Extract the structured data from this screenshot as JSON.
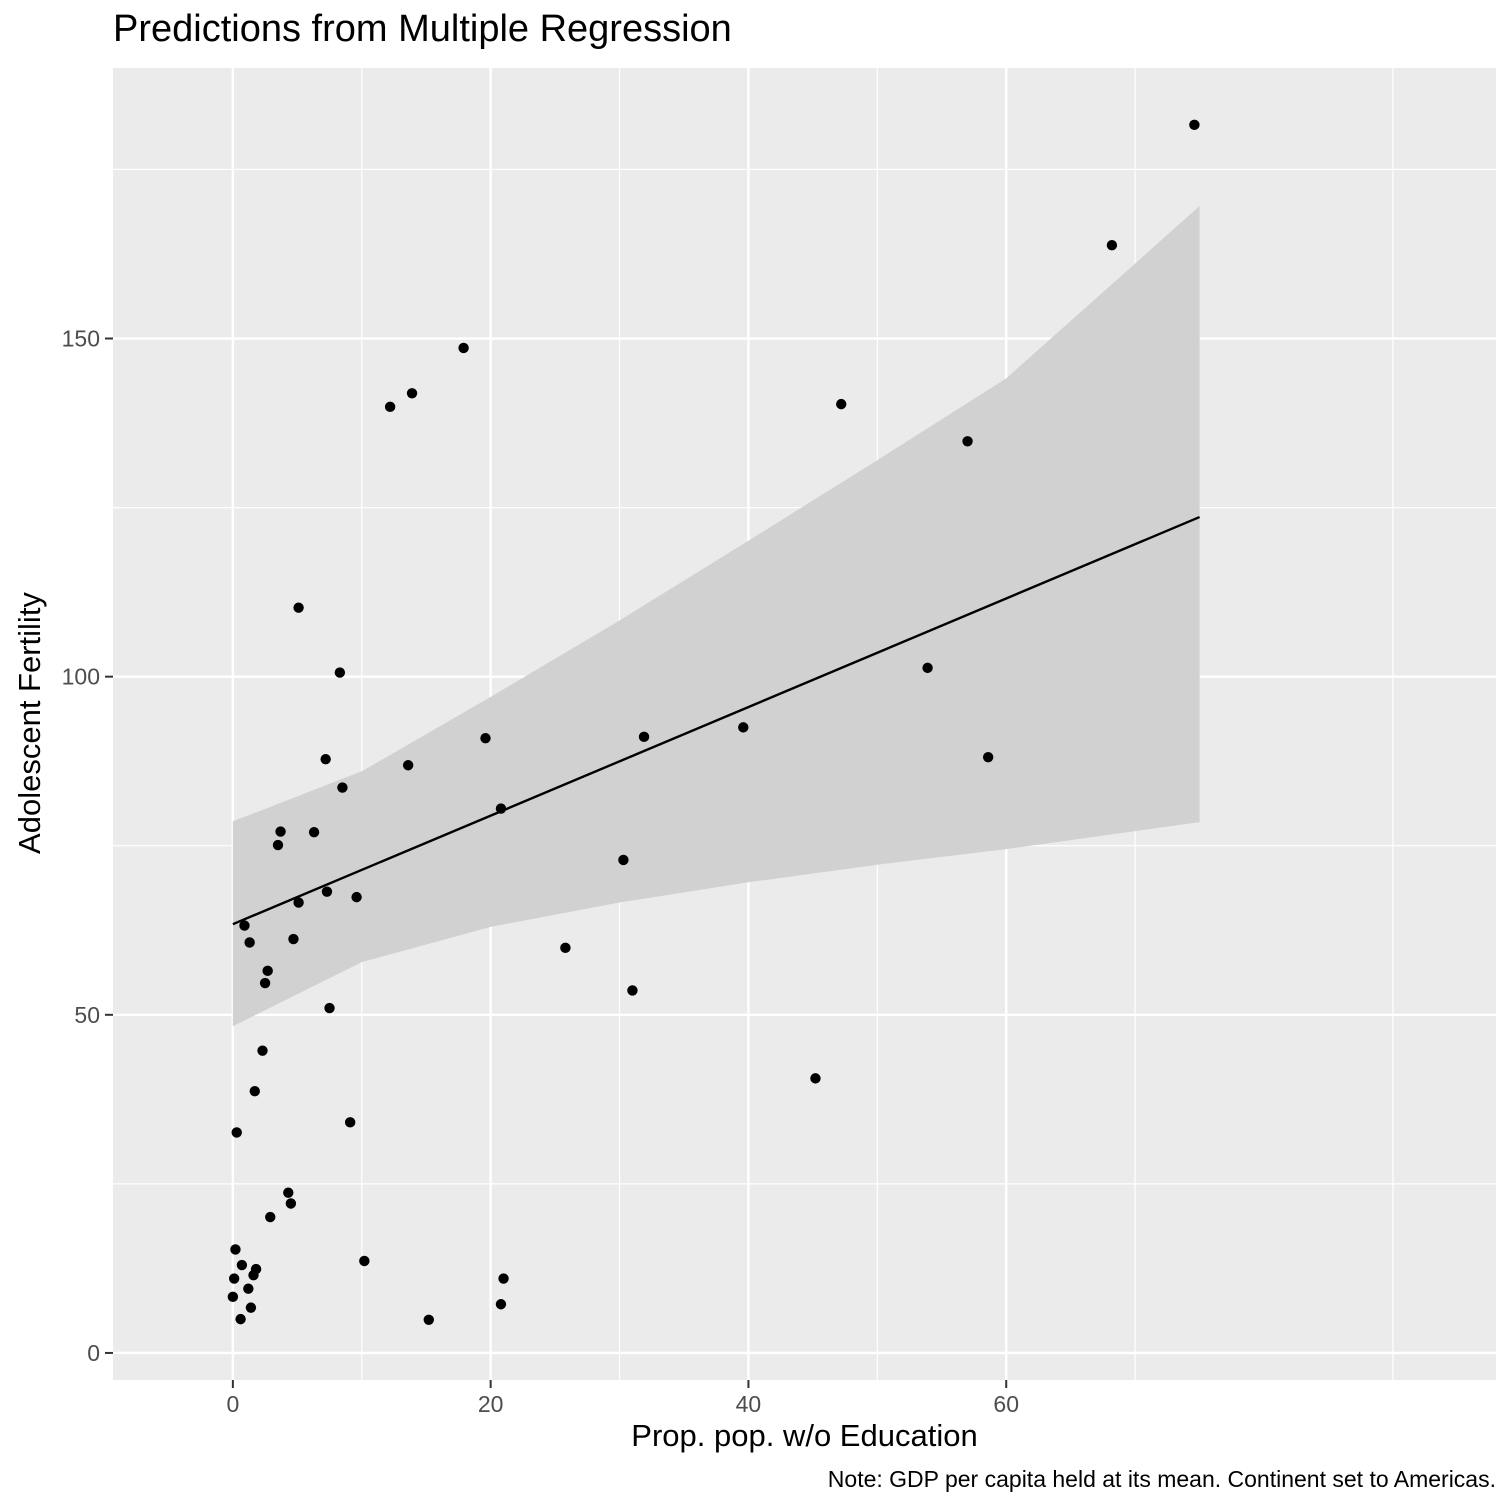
{
  "chart_data": {
    "type": "scatter",
    "title": "Predictions from Multiple Regression",
    "xlabel": "Prop. pop. w/o Education",
    "ylabel": "Adolescent Fertility",
    "caption": "Note: GDP per capita held at its mean. Continent set to Americas.",
    "xlim": [
      -9.3,
      98
    ],
    "ylim": [
      -4,
      190
    ],
    "x_ticks": [
      0,
      20,
      40,
      60
    ],
    "y_ticks": [
      0,
      50,
      100,
      150
    ],
    "grid": true,
    "background": "#ebebeb",
    "colors": {
      "points": "#000000",
      "line": "#000000",
      "ribbon": "#d1d1d1",
      "grid_major": "#ffffff"
    },
    "points": [
      [
        0.0,
        8.3
      ],
      [
        0.1,
        11.0
      ],
      [
        0.2,
        15.3
      ],
      [
        0.3,
        32.6
      ],
      [
        0.6,
        5.0
      ],
      [
        0.7,
        13.0
      ],
      [
        0.9,
        63.2
      ],
      [
        1.2,
        9.5
      ],
      [
        1.3,
        60.7
      ],
      [
        1.4,
        6.7
      ],
      [
        1.6,
        11.5
      ],
      [
        1.7,
        38.7
      ],
      [
        1.8,
        12.4
      ],
      [
        2.3,
        44.7
      ],
      [
        2.5,
        54.7
      ],
      [
        2.7,
        56.5
      ],
      [
        2.9,
        20.1
      ],
      [
        3.5,
        75.1
      ],
      [
        3.7,
        77.1
      ],
      [
        4.3,
        23.7
      ],
      [
        4.5,
        22.1
      ],
      [
        4.7,
        61.2
      ],
      [
        5.1,
        66.6
      ],
      [
        5.1,
        110.2
      ],
      [
        6.3,
        77.0
      ],
      [
        7.2,
        87.8
      ],
      [
        7.3,
        68.2
      ],
      [
        7.5,
        51.0
      ],
      [
        8.3,
        100.6
      ],
      [
        8.5,
        83.6
      ],
      [
        9.1,
        34.1
      ],
      [
        9.6,
        67.4
      ],
      [
        10.2,
        13.6
      ],
      [
        12.2,
        139.9
      ],
      [
        13.6,
        86.9
      ],
      [
        13.9,
        141.9
      ],
      [
        15.2,
        4.9
      ],
      [
        17.9,
        148.6
      ],
      [
        19.6,
        90.9
      ],
      [
        20.8,
        7.2
      ],
      [
        20.8,
        80.5
      ],
      [
        21.0,
        11.0
      ],
      [
        25.8,
        59.9
      ],
      [
        30.3,
        72.9
      ],
      [
        31.0,
        53.6
      ],
      [
        31.9,
        91.1
      ],
      [
        39.6,
        92.5
      ],
      [
        45.2,
        40.6
      ],
      [
        47.2,
        140.3
      ],
      [
        53.9,
        101.3
      ],
      [
        57.0,
        134.8
      ],
      [
        58.6,
        88.1
      ],
      [
        68.2,
        163.8
      ],
      [
        74.6,
        181.6
      ]
    ],
    "fit_line": {
      "x": [
        0,
        75
      ],
      "y": [
        63.4,
        123.6
      ]
    },
    "confidence_band": {
      "x": [
        0,
        10,
        20,
        30,
        40,
        50,
        60,
        75
      ],
      "lower": [
        48.3,
        57.8,
        63.0,
        66.6,
        69.6,
        72.2,
        74.5,
        78.5
      ],
      "upper": [
        78.6,
        86.0,
        97.0,
        108.3,
        120.1,
        132.0,
        144.1,
        169.6
      ]
    }
  }
}
